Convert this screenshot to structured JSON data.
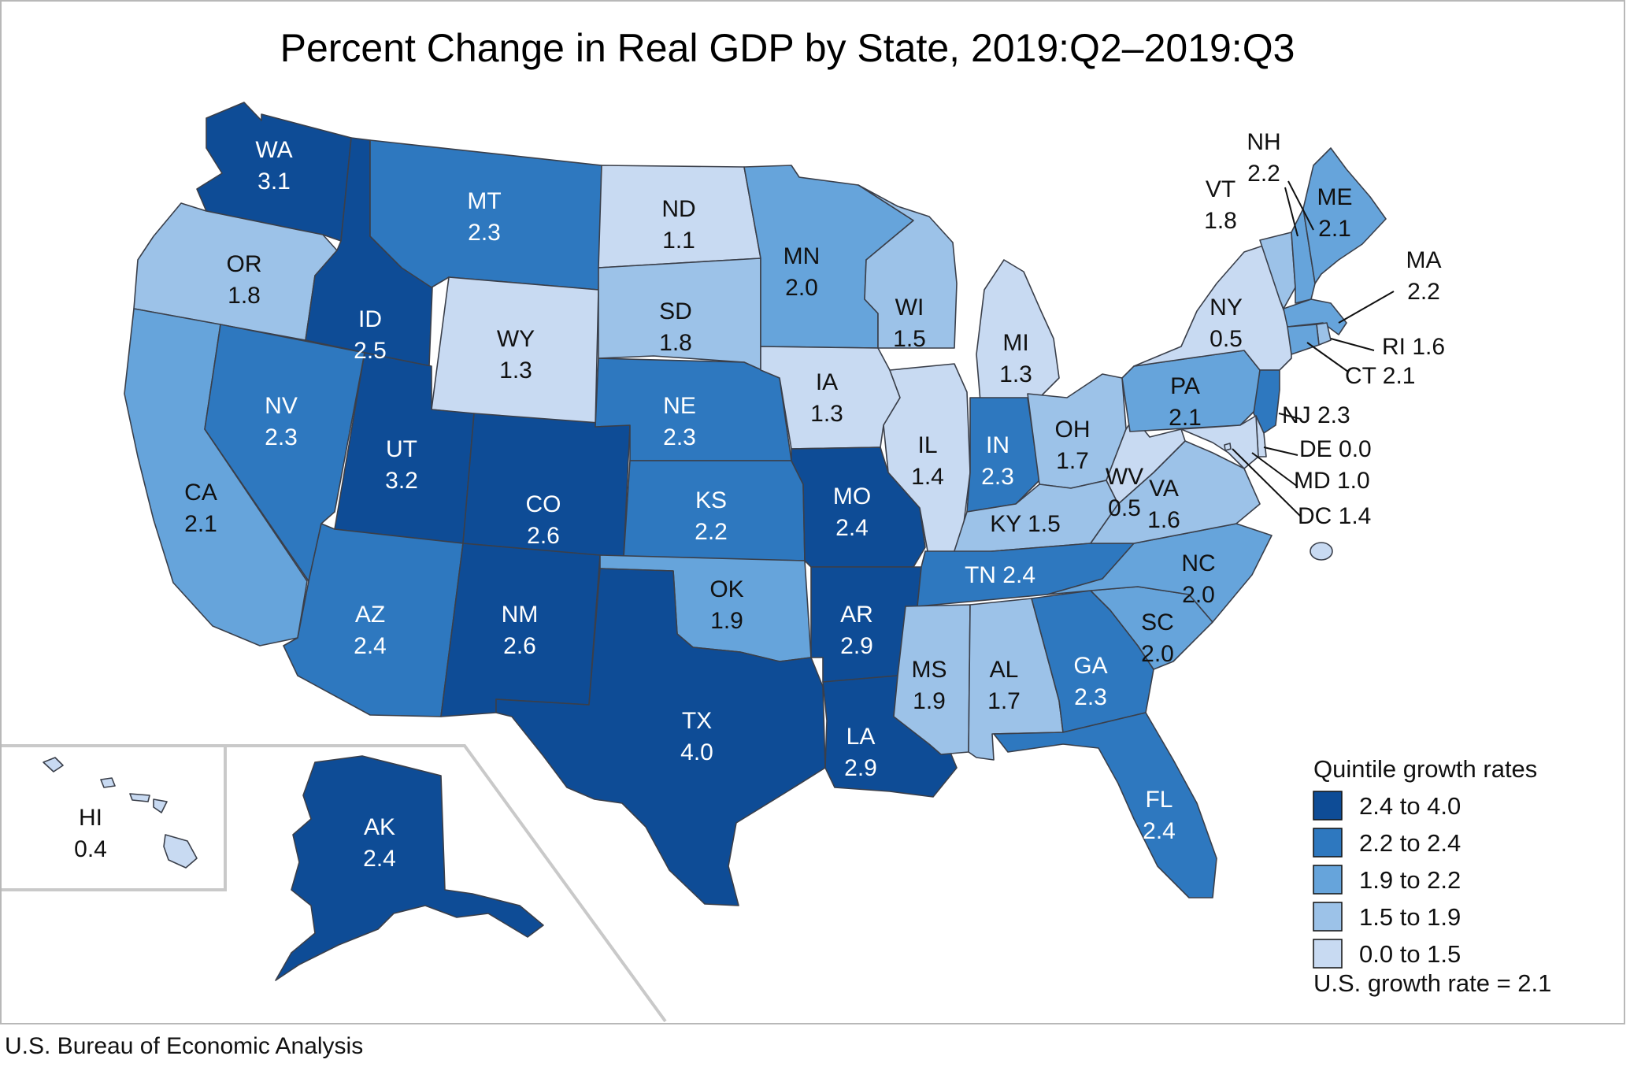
{
  "title": "Percent Change in Real GDP by State, 2019:Q2–2019:Q3",
  "source": "U.S. Bureau of Economic Analysis",
  "colors": {
    "q1": "#0e4c96",
    "q2": "#2e78bf",
    "q3": "#66a4db",
    "q4": "#9cc2e8",
    "q5": "#c8daf2",
    "outline": "#3a3f4a"
  },
  "legend": {
    "title": "Quintile growth rates",
    "items": [
      {
        "label": "2.4 to 4.0",
        "color": "#0e4c96"
      },
      {
        "label": "2.2 to 2.4",
        "color": "#2e78bf"
      },
      {
        "label": "1.9 to 2.2",
        "color": "#66a4db"
      },
      {
        "label": "1.5 to 1.9",
        "color": "#9cc2e8"
      },
      {
        "label": "0.0 to 1.5",
        "color": "#c8daf2"
      }
    ],
    "us_rate": "U.S. growth rate = 2.1"
  },
  "states": [
    {
      "abbr": "WA",
      "value": "3.1"
    },
    {
      "abbr": "OR",
      "value": "1.8"
    },
    {
      "abbr": "CA",
      "value": "2.1"
    },
    {
      "abbr": "ID",
      "value": "2.5"
    },
    {
      "abbr": "NV",
      "value": "2.3"
    },
    {
      "abbr": "MT",
      "value": "2.3"
    },
    {
      "abbr": "WY",
      "value": "1.3"
    },
    {
      "abbr": "UT",
      "value": "3.2"
    },
    {
      "abbr": "AZ",
      "value": "2.4"
    },
    {
      "abbr": "CO",
      "value": "2.6"
    },
    {
      "abbr": "NM",
      "value": "2.6"
    },
    {
      "abbr": "ND",
      "value": "1.1"
    },
    {
      "abbr": "SD",
      "value": "1.8"
    },
    {
      "abbr": "NE",
      "value": "2.3"
    },
    {
      "abbr": "KS",
      "value": "2.2"
    },
    {
      "abbr": "OK",
      "value": "1.9"
    },
    {
      "abbr": "TX",
      "value": "4.0"
    },
    {
      "abbr": "MN",
      "value": "2.0"
    },
    {
      "abbr": "IA",
      "value": "1.3"
    },
    {
      "abbr": "MO",
      "value": "2.4"
    },
    {
      "abbr": "AR",
      "value": "2.9"
    },
    {
      "abbr": "LA",
      "value": "2.9"
    },
    {
      "abbr": "WI",
      "value": "1.5"
    },
    {
      "abbr": "IL",
      "value": "1.4"
    },
    {
      "abbr": "MI",
      "value": "1.3"
    },
    {
      "abbr": "IN",
      "value": "2.3"
    },
    {
      "abbr": "OH",
      "value": "1.7"
    },
    {
      "abbr": "KY",
      "value": "1.5"
    },
    {
      "abbr": "TN",
      "value": "2.4"
    },
    {
      "abbr": "MS",
      "value": "1.9"
    },
    {
      "abbr": "AL",
      "value": "1.7"
    },
    {
      "abbr": "GA",
      "value": "2.3"
    },
    {
      "abbr": "FL",
      "value": "2.4"
    },
    {
      "abbr": "SC",
      "value": "2.0"
    },
    {
      "abbr": "NC",
      "value": "2.0"
    },
    {
      "abbr": "VA",
      "value": "1.6"
    },
    {
      "abbr": "WV",
      "value": "0.5"
    },
    {
      "abbr": "PA",
      "value": "2.1"
    },
    {
      "abbr": "NY",
      "value": "0.5"
    },
    {
      "abbr": "VT",
      "value": "1.8"
    },
    {
      "abbr": "NH",
      "value": "2.2"
    },
    {
      "abbr": "ME",
      "value": "2.1"
    },
    {
      "abbr": "MA",
      "value": "2.2"
    },
    {
      "abbr": "RI",
      "value": "1.6"
    },
    {
      "abbr": "CT",
      "value": "2.1"
    },
    {
      "abbr": "NJ",
      "value": "2.3"
    },
    {
      "abbr": "DE",
      "value": "0.0"
    },
    {
      "abbr": "MD",
      "value": "1.0"
    },
    {
      "abbr": "DC",
      "value": "1.4"
    },
    {
      "abbr": "AK",
      "value": "2.4"
    },
    {
      "abbr": "HI",
      "value": "0.4"
    }
  ]
}
